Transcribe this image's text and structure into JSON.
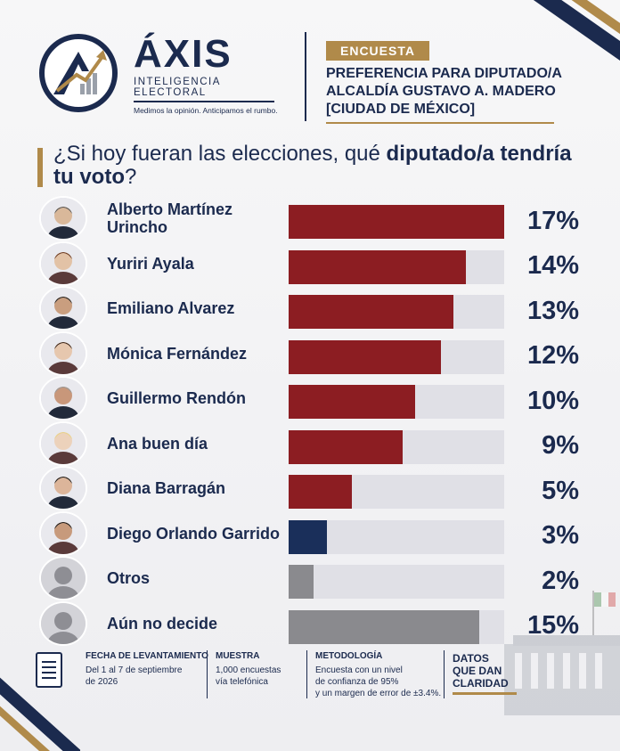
{
  "header": {
    "brand_name": "ÁXIS",
    "brand_sub": "INTELIGENCIA ELECTORAL",
    "brand_tagline": "Medimos la opinión. Anticipamos el rumbo.",
    "badge": "ENCUESTA",
    "title_lines": [
      "PREFERENCIA PARA DIPUTADO/A",
      "ALCALDÍA GUSTAVO A. MADERO",
      "[CIUDAD DE MÉXICO]"
    ]
  },
  "question": {
    "pre": "¿Si hoy fueran las elecciones, qué ",
    "bold": "diputado/a tendría tu voto",
    "post": "?"
  },
  "colors": {
    "navy": "#1b2a4e",
    "gold": "#b08a4a",
    "maroon": "#8c1d22",
    "navy_bar": "#1a2f5a",
    "gray_bar": "#8a8a8e",
    "track": "#e0e0e6"
  },
  "chart_data": {
    "type": "bar",
    "orientation": "horizontal",
    "categories": [
      "Alberto Martínez Urincho",
      "Yuriri Ayala",
      "Emiliano Alvarez",
      "Mónica Fernández",
      "Guillermo Rendón",
      "Ana buen día",
      "Diana Barragán",
      "Diego Orlando Garrido",
      "Otros",
      "Aún no decide"
    ],
    "values": [
      17,
      14,
      13,
      12,
      10,
      9,
      5,
      3,
      2,
      15
    ],
    "value_labels": [
      "17%",
      "14%",
      "13%",
      "12%",
      "10%",
      "9%",
      "5%",
      "3%",
      "2%",
      "15%"
    ],
    "bar_colors": [
      "#8c1d22",
      "#8c1d22",
      "#8c1d22",
      "#8c1d22",
      "#8c1d22",
      "#8c1d22",
      "#8c1d22",
      "#1a2f5a",
      "#8a8a8e",
      "#8a8a8e"
    ],
    "avatar_icons": [
      "man-photo-icon",
      "woman-photo-icon",
      "man-photo-icon",
      "woman-photo-icon",
      "man-photo-icon",
      "woman-photo-icon",
      "woman-photo-icon",
      "man-photo-icon",
      "generic-person-icon",
      "generic-person-icon"
    ],
    "xlim": [
      0,
      17
    ]
  },
  "footer": {
    "fecha_label": "FECHA DE LEVANTAMIENTO",
    "fecha_lines": [
      "Del 1 al 7 de septiembre",
      "de 2026"
    ],
    "muestra_label": "MUESTRA",
    "muestra_lines": [
      "1,000 encuestas",
      "vía telefónica"
    ],
    "metodologia_label": "METODOLOGÍA",
    "metodologia_lines": [
      "Encuesta con un nivel",
      "de confianza de 95%",
      "y un margen de error de ±3.4%."
    ],
    "datos_lines": [
      "DATOS",
      "QUE DAN",
      "CLARIDAD"
    ]
  }
}
